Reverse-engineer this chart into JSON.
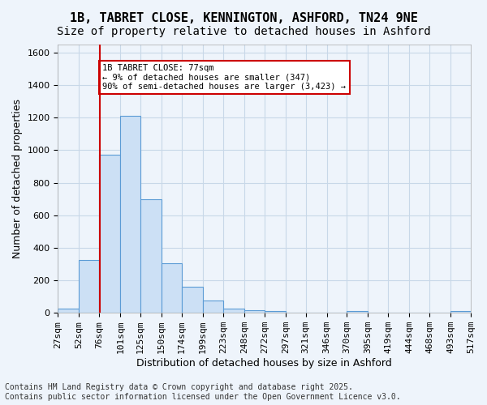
{
  "title_line1": "1B, TABRET CLOSE, KENNINGTON, ASHFORD, TN24 9NE",
  "title_line2": "Size of property relative to detached houses in Ashford",
  "xlabel": "Distribution of detached houses by size in Ashford",
  "ylabel": "Number of detached properties",
  "bar_edges": [
    27,
    52,
    76,
    101,
    125,
    150,
    174,
    199,
    223,
    248,
    272,
    297,
    321,
    346,
    370,
    395,
    419,
    444,
    468,
    493,
    517
  ],
  "bar_heights": [
    25,
    325,
    975,
    1210,
    700,
    305,
    160,
    75,
    25,
    18,
    12,
    0,
    0,
    0,
    10,
    0,
    0,
    0,
    0,
    10
  ],
  "bar_color": "#cce0f5",
  "bar_edge_color": "#5b9bd5",
  "grid_color": "#c8d8e8",
  "background_color": "#eef4fb",
  "vline_x": 77,
  "vline_color": "#cc0000",
  "annotation_text": "1B TABRET CLOSE: 77sqm\n← 9% of detached houses are smaller (347)\n90% of semi-detached houses are larger (3,423) →",
  "annotation_box_color": "#ffffff",
  "annotation_box_edge": "#cc0000",
  "tick_labels": [
    "27sqm",
    "52sqm",
    "76sqm",
    "101sqm",
    "125sqm",
    "150sqm",
    "174sqm",
    "199sqm",
    "223sqm",
    "248sqm",
    "272sqm",
    "297sqm",
    "321sqm",
    "346sqm",
    "370sqm",
    "395sqm",
    "419sqm",
    "444sqm",
    "468sqm",
    "493sqm",
    "517sqm"
  ],
  "ylim": [
    0,
    1650
  ],
  "footer_text": "Contains HM Land Registry data © Crown copyright and database right 2025.\nContains public sector information licensed under the Open Government Licence v3.0.",
  "title_fontsize": 11,
  "subtitle_fontsize": 10,
  "axis_label_fontsize": 9,
  "tick_fontsize": 8,
  "footer_fontsize": 7
}
